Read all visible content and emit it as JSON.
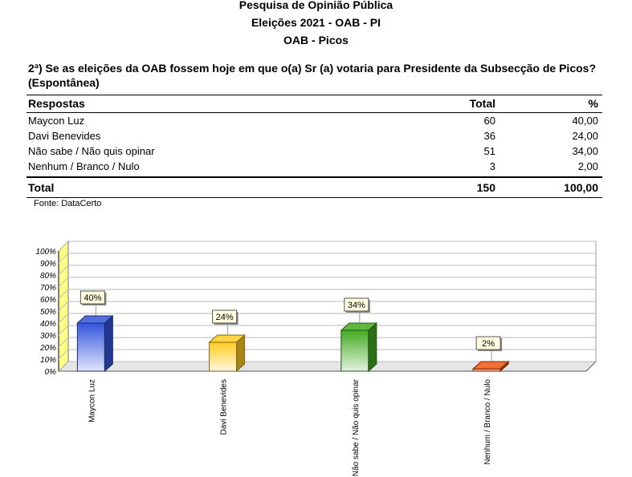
{
  "header": {
    "line1": "Pesquisa de Opinião Pública",
    "line2": "Eleições 2021 - OAB - PI",
    "line3": "OAB - Picos"
  },
  "question": "2ª) Se as eleições da OAB fossem hoje em que o(a) Sr (a) votaria para Presidente da Subsecção de Picos? (Espontânea)",
  "table": {
    "columns": [
      "Respostas",
      "Total",
      "%"
    ],
    "rows": [
      {
        "label": "Maycon Luz",
        "total": "60",
        "pct": "40,00"
      },
      {
        "label": "Davi Benevides",
        "total": "36",
        "pct": "24,00"
      },
      {
        "label": "Não sabe / Não quis opinar",
        "total": "51",
        "pct": "34,00"
      },
      {
        "label": "Nenhum / Branco / Nulo",
        "total": "3",
        "pct": "2,00"
      }
    ],
    "total_row": {
      "label": "Total",
      "total": "150",
      "pct": "100,00"
    }
  },
  "source": "Fonte: DataCerto",
  "chart_data": {
    "type": "bar",
    "categories": [
      "Maycon Luz",
      "Davi Benevides",
      "Não sabe / Não quis opinar",
      "Nenhum / Branco / Nulo"
    ],
    "values": [
      40,
      24,
      34,
      2
    ],
    "data_labels": [
      "40%",
      "24%",
      "34%",
      "2%"
    ],
    "colors": [
      "#3355dd",
      "#ffcc22",
      "#44aa22",
      "#ee5511"
    ],
    "ylim": [
      0,
      100
    ],
    "yticks": [
      "0%",
      "10%",
      "20%",
      "30%",
      "40%",
      "50%",
      "60%",
      "70%",
      "80%",
      "90%",
      "100%"
    ],
    "grid": true,
    "style": "3d"
  }
}
